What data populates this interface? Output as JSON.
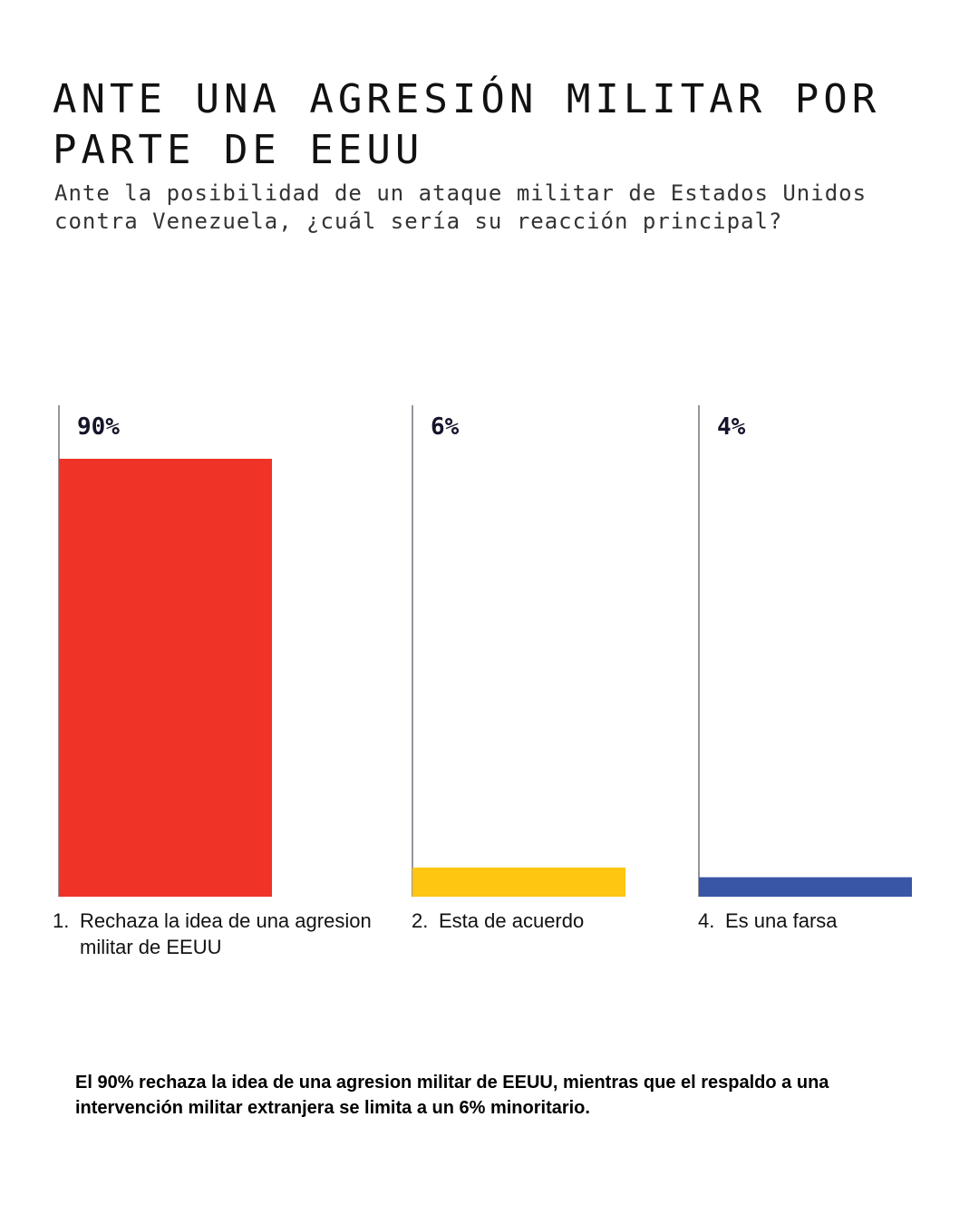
{
  "header": {
    "title": "ANTE UNA AGRESIÓN MILITAR POR\nPARTE DE EEUU",
    "subtitle": "Ante la posibilidad de un ataque militar de Estados Unidos contra Venezuela, ¿cuál sería su reacción principal?"
  },
  "chart_data": {
    "type": "bar",
    "categories": [
      "Rechaza la idea de una agresion militar de EEUU",
      "Esta de acuerdo",
      "Es una farsa"
    ],
    "category_numbers": [
      "1.",
      "2.",
      "4."
    ],
    "values": [
      90,
      6,
      4
    ],
    "value_labels": [
      "90%",
      "6%",
      "4%"
    ],
    "colors": [
      "#ef3326",
      "#fec511",
      "#3955a5"
    ],
    "ylim": [
      0,
      90
    ],
    "grid": false,
    "legend": "none"
  },
  "footnote": "El 90% rechaza la idea de una agresion militar de EEUU, mientras que el respaldo a una intervención militar extranjera se limita a un 6% minoritario."
}
